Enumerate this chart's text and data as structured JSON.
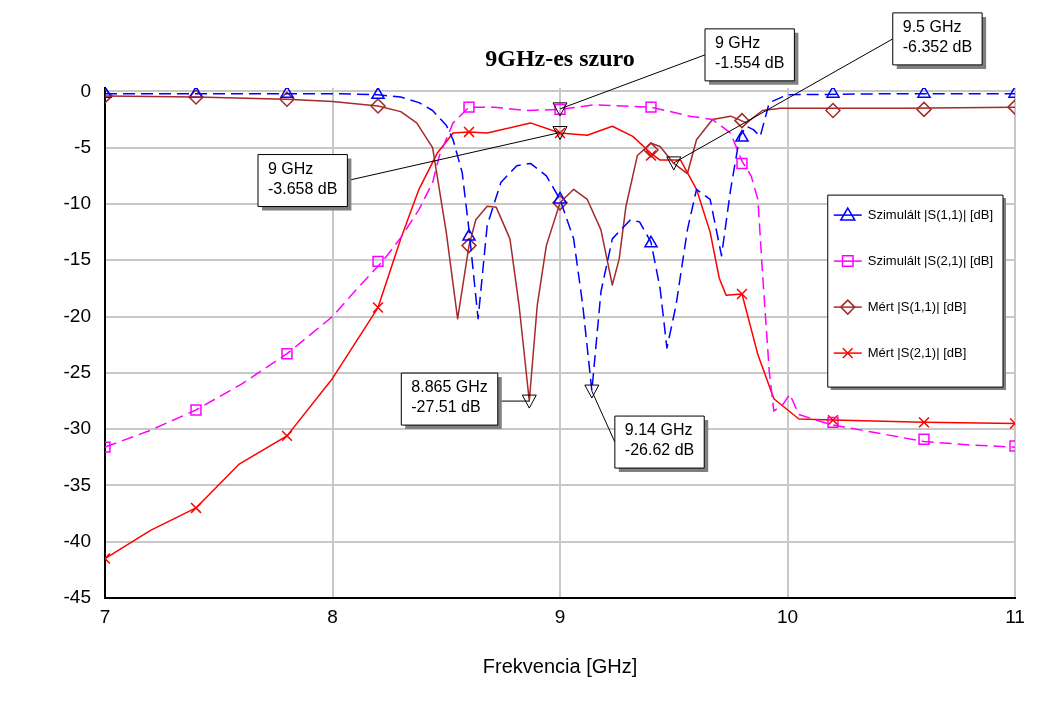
{
  "chart_data": {
    "type": "line",
    "title": "9GHz-es szuro",
    "xlabel": "Frekvencia [GHz]",
    "xlim": [
      7,
      11
    ],
    "xticks": [
      7,
      8,
      9,
      10,
      11
    ],
    "ylim": [
      -45,
      0.3
    ],
    "yticks": [
      -45,
      -40,
      -35,
      -30,
      -25,
      -20,
      -15,
      -10,
      -5,
      0
    ],
    "grid": true,
    "legend": "right",
    "series": [
      {
        "type": "line",
        "color": "#0000ff",
        "line_style": "dashed",
        "marker": "none",
        "x": [
          7,
          7.5,
          8,
          8.2,
          8.3,
          8.38,
          8.44,
          8.5,
          8.53,
          8.57,
          8.6,
          8.64,
          8.68,
          8.74,
          8.81,
          8.87,
          8.94,
          9,
          9.06,
          9.1,
          9.14,
          9.18,
          9.23,
          9.31,
          9.35,
          9.4,
          9.44,
          9.47,
          9.51,
          9.56,
          9.6,
          9.66,
          9.71,
          9.75,
          9.79,
          9.82,
          9.85,
          9.88,
          9.92,
          10,
          10.5,
          11
        ],
        "values": [
          -0.2,
          -0.2,
          -0.2,
          -0.3,
          -0.5,
          -1,
          -1.7,
          -3,
          -4.3,
          -7.2,
          -12.3,
          -20.2,
          -11.9,
          -8.1,
          -6.6,
          -6.4,
          -7.5,
          -9.6,
          -13.1,
          -19,
          -26.6,
          -17.8,
          -13.1,
          -11.4,
          -11.6,
          -13.4,
          -17.5,
          -22.8,
          -19,
          -12.3,
          -8.7,
          -9.6,
          -14.6,
          -8.7,
          -4,
          -3.1,
          -3.4,
          -4,
          -1,
          -0.3,
          -0.2,
          -0.2
        ]
      },
      {
        "type": "line",
        "color": "#ff00ff",
        "line_style": "dashed",
        "marker": "none",
        "x": [
          7,
          7.2,
          7.4,
          7.6,
          7.8,
          8,
          8.1,
          8.22,
          8.3,
          8.38,
          8.44,
          8.47,
          8.53,
          8.6,
          8.71,
          8.85,
          9,
          9.15,
          9.4,
          9.57,
          9.67,
          9.75,
          9.8,
          9.84,
          9.87,
          9.89,
          9.92,
          9.94,
          9.98,
          10.01,
          10.05,
          10.19,
          10.41,
          10.6,
          10.8,
          11
        ],
        "values": [
          -31.6,
          -30.1,
          -28.3,
          -26,
          -23.3,
          -20,
          -17.7,
          -15.1,
          -13,
          -10.5,
          -8.1,
          -5.7,
          -2.8,
          -1.4,
          -1.4,
          -1.7,
          -1.6,
          -1.2,
          -1.4,
          -2.2,
          -2.5,
          -3.7,
          -6.2,
          -7.5,
          -9.6,
          -16.1,
          -24.9,
          -28.4,
          -27.8,
          -26.9,
          -28.7,
          -29.6,
          -30.4,
          -31.1,
          -31.4,
          -31.6
        ]
      },
      {
        "type": "line",
        "color": "#a52a2a",
        "line_style": "solid",
        "marker": "none",
        "x": [
          7,
          7.4,
          7.8,
          8,
          8.2,
          8.3,
          8.37,
          8.44,
          8.5,
          8.55,
          8.6,
          8.63,
          8.68,
          8.72,
          8.78,
          8.82,
          8.865,
          8.9,
          8.94,
          9,
          9.06,
          9.12,
          9.18,
          9.23,
          9.26,
          9.29,
          9.34,
          9.4,
          9.44,
          9.5,
          9.56,
          9.6,
          9.67,
          9.75,
          9.82,
          9.89,
          9.97,
          10.5,
          11
        ],
        "values": [
          -0.4,
          -0.5,
          -0.7,
          -0.9,
          -1.3,
          -1.8,
          -2.8,
          -5,
          -12.5,
          -20.2,
          -13.7,
          -11.4,
          -10.2,
          -10.3,
          -13.1,
          -19,
          -27.5,
          -19,
          -13.7,
          -9.9,
          -8.7,
          -9.6,
          -12.3,
          -17.2,
          -14.9,
          -10.2,
          -5.7,
          -4.6,
          -4.9,
          -6.4,
          -7.3,
          -4.3,
          -2.5,
          -2.2,
          -2.8,
          -1.7,
          -1.5,
          -1.5,
          -1.4
        ]
      },
      {
        "type": "line",
        "color": "#ff0000",
        "line_style": "solid",
        "marker": "none",
        "x": [
          7,
          7.2,
          7.4,
          7.59,
          7.8,
          8,
          8.2,
          8.3,
          8.38,
          8.46,
          8.53,
          8.6,
          8.68,
          8.87,
          9,
          9.12,
          9.23,
          9.32,
          9.4,
          9.44,
          9.53,
          9.6,
          9.66,
          9.7,
          9.73,
          9.8,
          9.87,
          9.94,
          10.05,
          10.2,
          10.6,
          11
        ],
        "values": [
          -41.5,
          -39,
          -37,
          -33.1,
          -30.6,
          -25.5,
          -19.2,
          -13.1,
          -8.7,
          -5.5,
          -3.7,
          -3.6,
          -3.7,
          -2.8,
          -3.7,
          -3.9,
          -3.1,
          -4,
          -5.5,
          -6.1,
          -6.1,
          -8.7,
          -12.5,
          -16.6,
          -18.1,
          -18,
          -23.4,
          -27.3,
          -29.1,
          -29.2,
          -29.4,
          -29.5
        ]
      },
      {
        "type": "scatter",
        "name": "Szimulált |S(1,1)| [dB]",
        "color": "#0000ff",
        "marker": "triangle",
        "x": [
          7,
          7.4,
          7.8,
          8.2,
          8.6,
          9,
          9.4,
          9.8,
          10.2,
          10.6,
          11
        ],
        "values": [
          -0.2,
          -0.2,
          -0.2,
          -0.3,
          -12.9,
          -9.6,
          -13.5,
          -4.1,
          -0.2,
          -0.2,
          -0.2
        ]
      },
      {
        "type": "scatter",
        "name": "Szimulált |S(2,1)| [dB]",
        "color": "#ff00ff",
        "marker": "square",
        "x": [
          7,
          7.4,
          7.8,
          8.2,
          8.6,
          9,
          9.4,
          9.8,
          10.2,
          10.6,
          11
        ],
        "values": [
          -31.6,
          -28.3,
          -23.3,
          -15.1,
          -1.4,
          -1.6,
          -1.4,
          -6.4,
          -29.4,
          -30.9,
          -31.5
        ]
      },
      {
        "type": "scatter",
        "name": "Mért |S(1,1)| [dB]",
        "color": "#a52a2a",
        "marker": "diamond",
        "x": [
          7,
          7.4,
          7.8,
          8.2,
          8.6,
          9,
          9.4,
          9.8,
          10.2,
          10.6,
          11
        ],
        "values": [
          -0.4,
          -0.5,
          -0.7,
          -1.3,
          -13.7,
          -9.9,
          -5.2,
          -2.6,
          -1.7,
          -1.6,
          -1.4
        ]
      },
      {
        "type": "scatter",
        "name": "Mért |S(2,1)| [dB]",
        "color": "#ff0000",
        "marker": "cross",
        "x": [
          7,
          7.4,
          7.8,
          8.2,
          8.6,
          9,
          9.4,
          9.8,
          10.2,
          10.6,
          11
        ],
        "values": [
          -41.5,
          -37,
          -30.6,
          -19.2,
          -3.6,
          -3.7,
          -5.7,
          -18,
          -29.2,
          -29.4,
          -29.5
        ]
      }
    ],
    "annotations": [
      {
        "text": "9 GHz\n-1.554 dB",
        "x": 9,
        "y": -1.554
      },
      {
        "text": "9.5 GHz\n-6.352 dB",
        "x": 9.5,
        "y": -6.352
      },
      {
        "text": "9 GHz\n-3.658 dB",
        "x": 9,
        "y": -3.658
      },
      {
        "text": "8.865 GHz\n-27.51 dB",
        "x": 8.865,
        "y": -27.51
      },
      {
        "text": "9.14 GHz\n-26.62 dB",
        "x": 9.14,
        "y": -26.62
      }
    ]
  }
}
